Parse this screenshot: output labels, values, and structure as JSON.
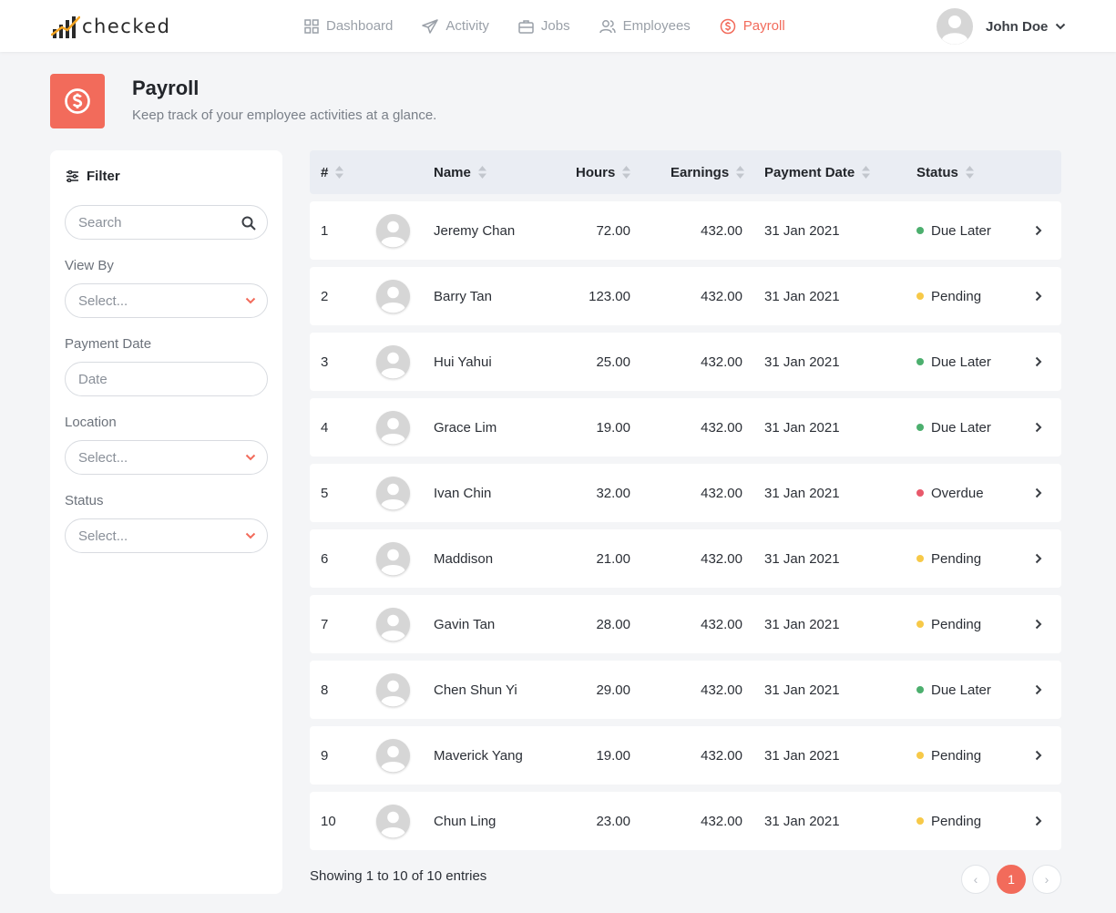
{
  "brand": {
    "name": "checked",
    "accent": "#f26b5b"
  },
  "nav": {
    "items": [
      {
        "label": "Dashboard",
        "icon": "grid-icon"
      },
      {
        "label": "Activity",
        "icon": "send-icon"
      },
      {
        "label": "Jobs",
        "icon": "briefcase-icon"
      },
      {
        "label": "Employees",
        "icon": "users-icon"
      },
      {
        "label": "Payroll",
        "icon": "dollar-circle-icon",
        "active": true
      }
    ]
  },
  "user": {
    "name": "John Doe"
  },
  "page": {
    "title": "Payroll",
    "subtitle": "Keep track of your employee activities at a glance."
  },
  "filter": {
    "title": "Filter",
    "search_placeholder": "Search",
    "view_by": {
      "label": "View By",
      "value": "Select..."
    },
    "payment_date": {
      "label": "Payment Date",
      "placeholder": "Date"
    },
    "location": {
      "label": "Location",
      "value": "Select..."
    },
    "status": {
      "label": "Status",
      "value": "Select..."
    }
  },
  "table": {
    "columns": {
      "index": "#",
      "name": "Name",
      "hours": "Hours",
      "earnings": "Earnings",
      "payment_date": "Payment Date",
      "status": "Status"
    },
    "status_colors": {
      "Due Later": "#4caf6e",
      "Pending": "#f7c948",
      "Overdue": "#e8596b"
    },
    "rows": [
      {
        "index": "1",
        "name": "Jeremy Chan",
        "hours": "72.00",
        "earnings": "432.00",
        "date": "31 Jan 2021",
        "status": "Due Later"
      },
      {
        "index": "2",
        "name": "Barry Tan",
        "hours": "123.00",
        "earnings": "432.00",
        "date": "31 Jan 2021",
        "status": "Pending"
      },
      {
        "index": "3",
        "name": "Hui Yahui",
        "hours": "25.00",
        "earnings": "432.00",
        "date": "31 Jan 2021",
        "status": "Due Later"
      },
      {
        "index": "4",
        "name": "Grace Lim",
        "hours": "19.00",
        "earnings": "432.00",
        "date": "31 Jan 2021",
        "status": "Due Later"
      },
      {
        "index": "5",
        "name": "Ivan Chin",
        "hours": "32.00",
        "earnings": "432.00",
        "date": "31 Jan 2021",
        "status": "Overdue"
      },
      {
        "index": "6",
        "name": "Maddison",
        "hours": "21.00",
        "earnings": "432.00",
        "date": "31 Jan 2021",
        "status": "Pending"
      },
      {
        "index": "7",
        "name": "Gavin Tan",
        "hours": "28.00",
        "earnings": "432.00",
        "date": "31 Jan 2021",
        "status": "Pending"
      },
      {
        "index": "8",
        "name": "Chen Shun Yi",
        "hours": "29.00",
        "earnings": "432.00",
        "date": "31 Jan 2021",
        "status": "Due Later"
      },
      {
        "index": "9",
        "name": "Maverick Yang",
        "hours": "19.00",
        "earnings": "432.00",
        "date": "31 Jan 2021",
        "status": "Pending"
      },
      {
        "index": "10",
        "name": "Chun Ling",
        "hours": "23.00",
        "earnings": "432.00",
        "date": "31 Jan 2021",
        "status": "Pending"
      }
    ]
  },
  "pagination": {
    "summary": "Showing 1 to 10 of 10 entries",
    "prev": "‹",
    "current": "1",
    "next": "›"
  }
}
